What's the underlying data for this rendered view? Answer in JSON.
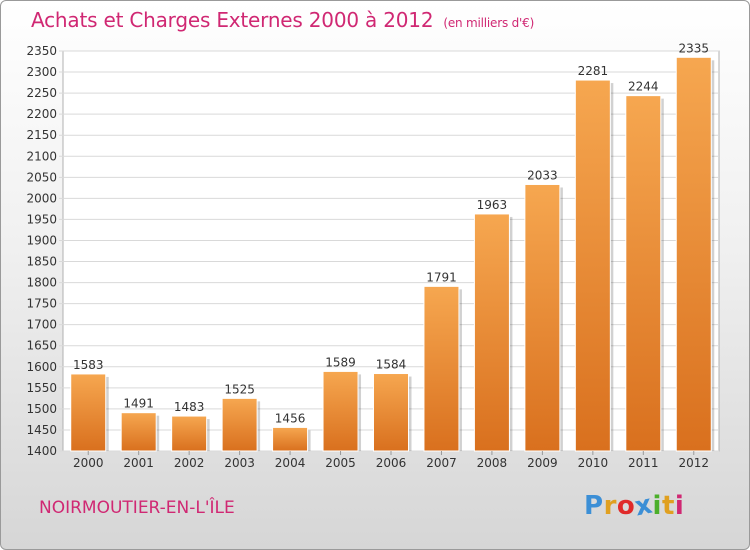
{
  "title": "Achats et Charges Externes 2000 à 2012",
  "unit_label": "(en milliers d'€)",
  "city": "NOIRMOUTIER-EN-L'ÎLE",
  "logo": {
    "letters": [
      "P",
      "r",
      "o",
      "x",
      "i",
      "t",
      "i"
    ],
    "colors": [
      "#3c8fd6",
      "#e0a020",
      "#e02a2a",
      "#3c8fd6",
      "#4caf2a",
      "#e0a020",
      "#d02873"
    ]
  },
  "colors": {
    "title": "#d02873",
    "bar_light": "#f6a750",
    "bar_dark": "#d9701e"
  },
  "chart_data": {
    "type": "bar",
    "categories": [
      "2000",
      "2001",
      "2002",
      "2003",
      "2004",
      "2005",
      "2006",
      "2007",
      "2008",
      "2009",
      "2010",
      "2011",
      "2012"
    ],
    "values": [
      1583,
      1491,
      1483,
      1525,
      1456,
      1589,
      1584,
      1791,
      1963,
      2033,
      2281,
      2244,
      2335
    ],
    "ylim": [
      1400,
      2350
    ],
    "yticks": [
      1400,
      1450,
      1500,
      1550,
      1600,
      1650,
      1700,
      1750,
      1800,
      1850,
      1900,
      1950,
      2000,
      2050,
      2100,
      2150,
      2200,
      2250,
      2300,
      2350
    ],
    "grid": true
  }
}
